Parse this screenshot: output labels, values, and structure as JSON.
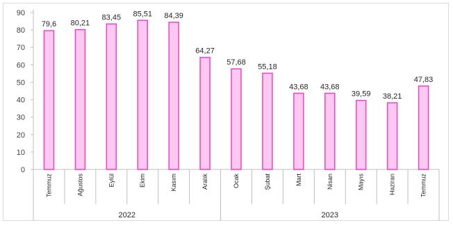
{
  "chart_data": {
    "type": "bar",
    "categories": [
      "Temmuz",
      "Ağustos",
      "Eylül",
      "Ekim",
      "Kasım",
      "Aralık",
      "Ocak",
      "Şubat",
      "Mart",
      "Nisan",
      "Mayıs",
      "Haziran",
      "Temmuz"
    ],
    "values": [
      79.6,
      80.21,
      83.45,
      85.51,
      84.39,
      64.27,
      57.68,
      55.18,
      43.68,
      43.68,
      39.59,
      38.21,
      47.83
    ],
    "data_labels": [
      "79,6",
      "80,21",
      "83,45",
      "85,51",
      "84,39",
      "64,27",
      "57,68",
      "55,18",
      "43,68",
      "43,68",
      "39,59",
      "38,21",
      "47,83"
    ],
    "groups": [
      {
        "label": "2022",
        "start": 0,
        "end": 5
      },
      {
        "label": "2023",
        "start": 6,
        "end": 12
      }
    ],
    "yticks": [
      "0",
      "10",
      "20",
      "30",
      "40",
      "50",
      "60",
      "70",
      "80",
      "90"
    ],
    "ylim": [
      0,
      90
    ],
    "grid": false,
    "legend": "none",
    "colors": {
      "bar_fill": "#ffc8f0",
      "bar_stroke": "#ee44c4",
      "axis": "#bfbfbf"
    }
  }
}
